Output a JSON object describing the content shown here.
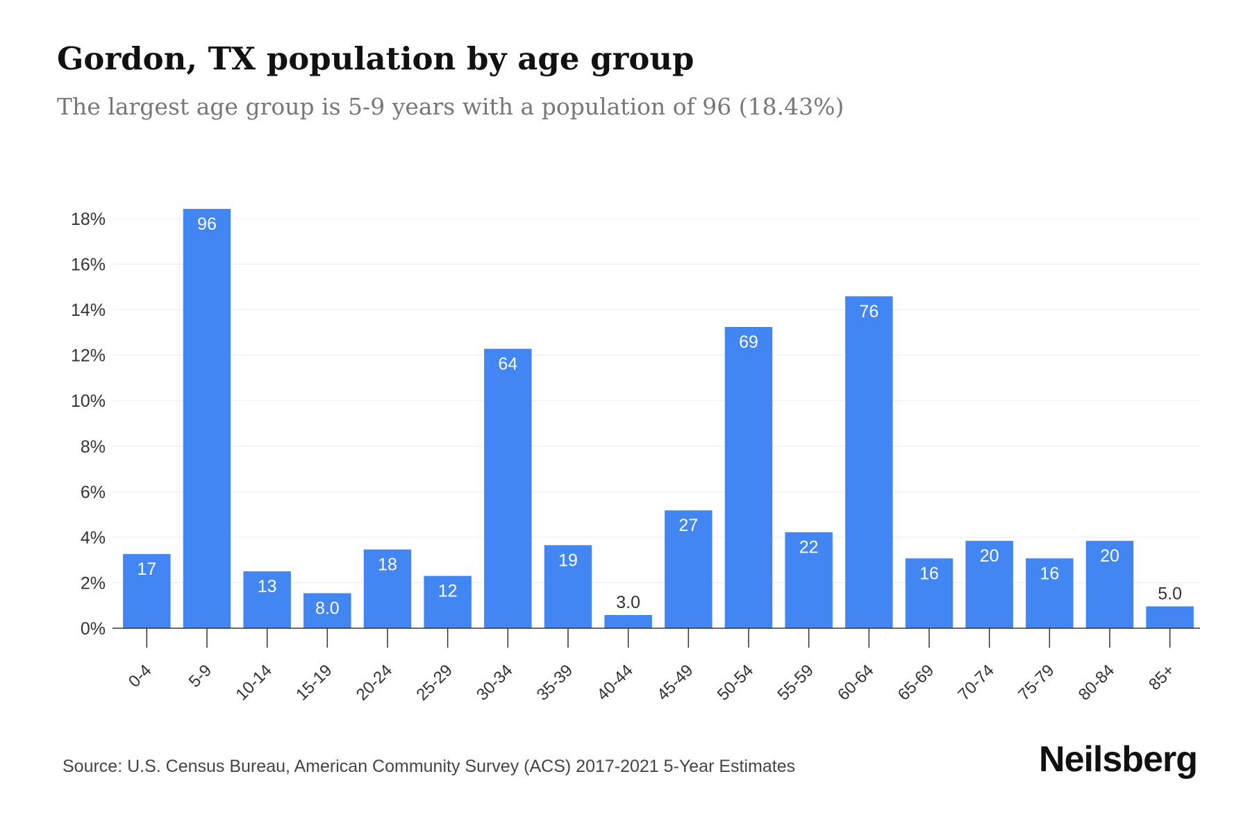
{
  "header": {
    "title": "Gordon, TX population by age group",
    "subtitle": "The largest age group is 5-9 years with a population of 96 (18.43%)"
  },
  "footer": {
    "source": "Source: U.S. Census Bureau, American Community Survey (ACS) 2017-2021 5-Year Estimates",
    "brand": "Neilsberg"
  },
  "colors": {
    "bar": "#4286f4",
    "grid": "#ececec",
    "axis": "#333333",
    "label_inside": "#ffffff",
    "label_outside": "#333333",
    "tick_text": "#333333"
  },
  "chart_data": {
    "type": "bar",
    "title": "Gordon, TX population by age group",
    "subtitle": "The largest age group is 5-9 years with a population of 96 (18.43%)",
    "xlabel": "",
    "ylabel": "",
    "categories": [
      "0-4",
      "5-9",
      "10-14",
      "15-19",
      "20-24",
      "25-29",
      "30-34",
      "35-39",
      "40-44",
      "45-49",
      "50-54",
      "55-59",
      "60-64",
      "65-69",
      "70-74",
      "75-79",
      "80-84",
      "85+"
    ],
    "percent_values": [
      3.26,
      18.43,
      2.5,
      1.54,
      3.46,
      2.3,
      12.28,
      3.65,
      0.58,
      5.18,
      13.24,
      4.22,
      14.59,
      3.07,
      3.84,
      3.07,
      3.84,
      0.96
    ],
    "labels": [
      "17",
      "96",
      "13",
      "8.0",
      "18",
      "12",
      "64",
      "19",
      "3.0",
      "27",
      "69",
      "22",
      "76",
      "16",
      "20",
      "16",
      "20",
      "5.0"
    ],
    "ylim": [
      0,
      18
    ],
    "yticks": [
      0,
      2,
      4,
      6,
      8,
      10,
      12,
      14,
      16,
      18
    ],
    "ytick_labels": [
      "0%",
      "2%",
      "4%",
      "6%",
      "8%",
      "10%",
      "12%",
      "14%",
      "16%",
      "18%"
    ],
    "grid": true,
    "legend": "none"
  }
}
